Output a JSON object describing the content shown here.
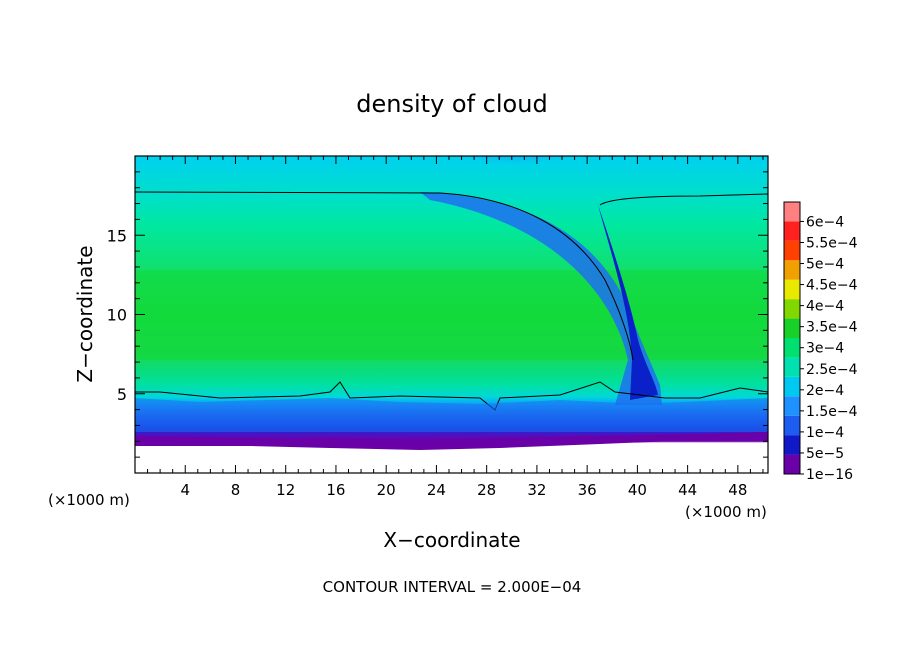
{
  "chart_data": {
    "type": "heatmap",
    "title": "density of cloud",
    "xlabel": "X−coordinate",
    "ylabel": "Z−coordinate",
    "x_unit_left": "(×1000 m)",
    "x_unit_right": "(×1000 m)",
    "footer": "CONTOUR INTERVAL = 2.000E−04",
    "xlim": [
      0,
      50.4
    ],
    "ylim": [
      0,
      20
    ],
    "x_ticks": [
      4,
      8,
      12,
      16,
      20,
      24,
      28,
      32,
      36,
      40,
      44,
      48
    ],
    "x_tick_labels": [
      "4",
      "8",
      "12",
      "16",
      "20",
      "24",
      "28",
      "32",
      "36",
      "40",
      "44",
      "48"
    ],
    "y_ticks": [
      5,
      10,
      15
    ],
    "y_tick_labels": [
      "5",
      "10",
      "15"
    ],
    "colorbar": {
      "levels": [
        "1e−16",
        "5e−5",
        "1e−4",
        "1.5e−4",
        "2e−4",
        "2.5e−4",
        "3e−4",
        "3.5e−4",
        "4e−4",
        "4.5e−4",
        "5e−4",
        "5.5e−4",
        "6e−4"
      ],
      "colors": [
        "#6a00a8",
        "#1018c8",
        "#1c5cf0",
        "#1e90ff",
        "#00c8f0",
        "#00e0b0",
        "#00e070",
        "#18d028",
        "#80d800",
        "#e8e800",
        "#f0a000",
        "#ff4000",
        "#ff2020",
        "#ff8080"
      ]
    },
    "contour_level": "2e−4",
    "description_regions": {
      "background_color": "#16d848",
      "upper_band_color": "#00e8c0",
      "low_level_color": "#1e50ff",
      "surface_color": "#7010b0",
      "updraft_color": "#0a20c8"
    }
  }
}
